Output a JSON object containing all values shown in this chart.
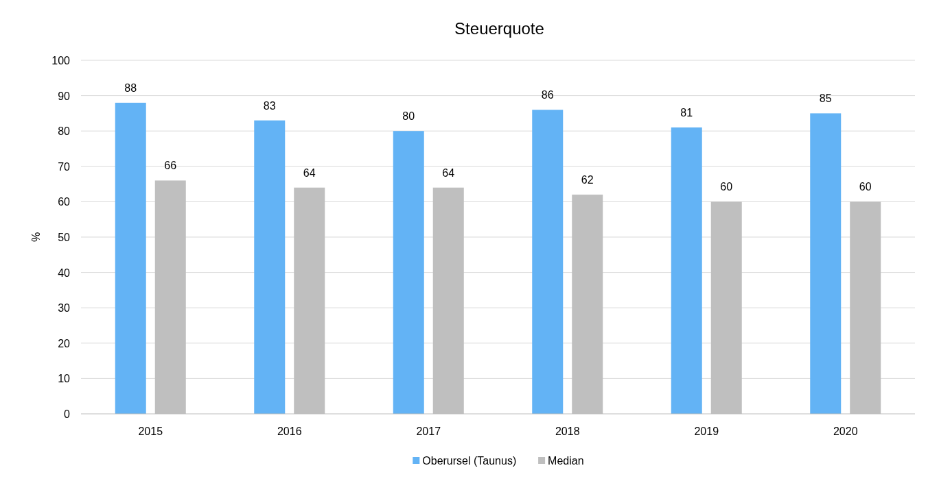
{
  "chart_data": {
    "type": "bar",
    "title": "Steuerquote",
    "ylabel": "%",
    "categories": [
      "2015",
      "2016",
      "2017",
      "2018",
      "2019",
      "2020"
    ],
    "series": [
      {
        "name": "Oberursel (Taunus)",
        "color": "#63b3f5",
        "values": [
          88,
          83,
          80,
          86,
          81,
          85
        ]
      },
      {
        "name": "Median",
        "color": "#bfbfbf",
        "values": [
          66,
          64,
          64,
          62,
          60,
          60
        ]
      }
    ],
    "ylim": [
      0,
      100
    ],
    "yticks": [
      0,
      10,
      20,
      30,
      40,
      50,
      60,
      70,
      80,
      90,
      100
    ],
    "grid": "y",
    "legend": "bottom",
    "data_labels": true
  }
}
